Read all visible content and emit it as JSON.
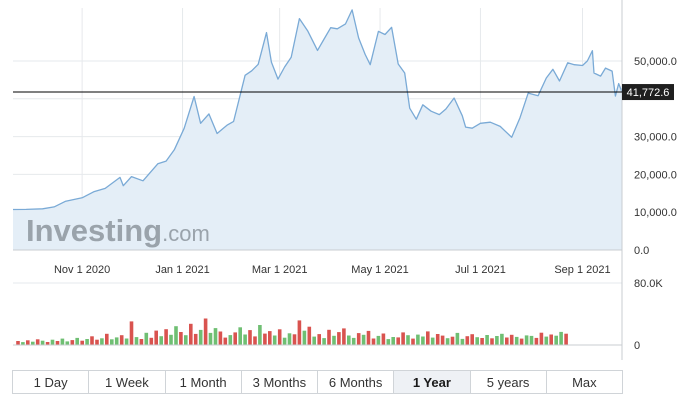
{
  "watermark": {
    "brand": "Investing",
    "suffix": ".com"
  },
  "range_buttons": [
    {
      "label": "1 Day",
      "active": false
    },
    {
      "label": "1 Week",
      "active": false
    },
    {
      "label": "1 Month",
      "active": false
    },
    {
      "label": "3 Months",
      "active": false
    },
    {
      "label": "6 Months",
      "active": false
    },
    {
      "label": "1 Year",
      "active": true
    },
    {
      "label": "5 years",
      "active": false
    },
    {
      "label": "Max",
      "active": false
    }
  ],
  "colors": {
    "line": "#7aaad6",
    "area": "#e4eef7",
    "current_line": "#000000",
    "current_label_bg": "#1f1f1f",
    "volume_up": "#6fbf73",
    "volume_down": "#d9534f",
    "grid": "#e6e9ec",
    "axis_text": "#333333",
    "watermark": "#9aa3ab"
  },
  "chart_data": [
    {
      "type": "area",
      "title": "",
      "xlabel": "",
      "ylabel": "",
      "current_value": 41772.6,
      "current_value_label": "41,772.6",
      "ylim": [
        0,
        64000
      ],
      "y_ticks": [
        0,
        10000,
        20000,
        30000,
        40000,
        50000
      ],
      "y_tick_labels": [
        "0.0",
        "10,000.0",
        "20,000.0",
        "30,000.0",
        "",
        "50,000.0"
      ],
      "x_ticks": [
        "2020-11-01",
        "2021-01-01",
        "2021-03-01",
        "2021-05-01",
        "2021-07-01",
        "2021-09-01"
      ],
      "x_tick_labels": [
        "Nov 1 2020",
        "Jan 1 2021",
        "Mar 1 2021",
        "May 1 2021",
        "Jul 1 2021",
        "Sep 1 2021"
      ],
      "xlim": [
        "2020-09-20",
        "2021-09-25"
      ],
      "grid": true,
      "series": [
        {
          "points": [
            [
              "2020-09-20",
              10700
            ],
            [
              "2020-09-28",
              10750
            ],
            [
              "2020-10-08",
              10900
            ],
            [
              "2020-10-15",
              11400
            ],
            [
              "2020-10-22",
              12900
            ],
            [
              "2020-11-01",
              13800
            ],
            [
              "2020-11-08",
              15400
            ],
            [
              "2020-11-15",
              16300
            ],
            [
              "2020-11-24",
              19200
            ],
            [
              "2020-11-26",
              17000
            ],
            [
              "2020-12-01",
              19400
            ],
            [
              "2020-12-08",
              18300
            ],
            [
              "2020-12-17",
              22800
            ],
            [
              "2020-12-22",
              23500
            ],
            [
              "2020-12-27",
              26500
            ],
            [
              "2021-01-02",
              32200
            ],
            [
              "2021-01-08",
              40600
            ],
            [
              "2021-01-12",
              33500
            ],
            [
              "2021-01-17",
              36000
            ],
            [
              "2021-01-22",
              30800
            ],
            [
              "2021-01-28",
              33000
            ],
            [
              "2021-02-01",
              34000
            ],
            [
              "2021-02-08",
              46200
            ],
            [
              "2021-02-12",
              47400
            ],
            [
              "2021-02-16",
              49100
            ],
            [
              "2021-02-21",
              57500
            ],
            [
              "2021-02-24",
              49700
            ],
            [
              "2021-02-28",
              45200
            ],
            [
              "2021-03-04",
              48400
            ],
            [
              "2021-03-08",
              51000
            ],
            [
              "2021-03-13",
              61200
            ],
            [
              "2021-03-18",
              58000
            ],
            [
              "2021-03-24",
              52800
            ],
            [
              "2021-03-28",
              55800
            ],
            [
              "2021-04-01",
              58800
            ],
            [
              "2021-04-05",
              58500
            ],
            [
              "2021-04-10",
              59800
            ],
            [
              "2021-04-14",
              63500
            ],
            [
              "2021-04-18",
              56100
            ],
            [
              "2021-04-22",
              51700
            ],
            [
              "2021-04-25",
              49000
            ],
            [
              "2021-04-30",
              57800
            ],
            [
              "2021-05-04",
              57000
            ],
            [
              "2021-05-08",
              58900
            ],
            [
              "2021-05-12",
              49200
            ],
            [
              "2021-05-16",
              46800
            ],
            [
              "2021-05-19",
              37500
            ],
            [
              "2021-05-23",
              34600
            ],
            [
              "2021-05-27",
              38400
            ],
            [
              "2021-06-01",
              36700
            ],
            [
              "2021-06-06",
              35800
            ],
            [
              "2021-06-10",
              37300
            ],
            [
              "2021-06-15",
              40200
            ],
            [
              "2021-06-20",
              35500
            ],
            [
              "2021-06-22",
              32500
            ],
            [
              "2021-06-26",
              32200
            ],
            [
              "2021-07-01",
              33500
            ],
            [
              "2021-07-07",
              33800
            ],
            [
              "2021-07-13",
              32700
            ],
            [
              "2021-07-20",
              29800
            ],
            [
              "2021-07-25",
              35000
            ],
            [
              "2021-07-30",
              41500
            ],
            [
              "2021-08-05",
              40800
            ],
            [
              "2021-08-10",
              45500
            ],
            [
              "2021-08-14",
              47800
            ],
            [
              "2021-08-18",
              44700
            ],
            [
              "2021-08-23",
              49500
            ],
            [
              "2021-08-27",
              49000
            ],
            [
              "2021-09-01",
              48800
            ],
            [
              "2021-09-04",
              50000
            ],
            [
              "2021-09-07",
              52700
            ],
            [
              "2021-09-08",
              46800
            ],
            [
              "2021-09-12",
              46000
            ],
            [
              "2021-09-15",
              48100
            ],
            [
              "2021-09-19",
              47300
            ],
            [
              "2021-09-21",
              40700
            ],
            [
              "2021-09-23",
              44000
            ],
            [
              "2021-09-25",
              41772.6
            ]
          ]
        }
      ]
    },
    {
      "type": "bar",
      "title": "",
      "ylabel": "",
      "ylim": [
        0,
        80000
      ],
      "y_tick_labels": [
        "0",
        "80.0K"
      ],
      "volume_start": "2020-09-23",
      "volume_days_per_bar": 3,
      "volume_shown": "estimated per-bar volume (shares), alternating direction",
      "volumes": [
        5200,
        3800,
        6100,
        4200,
        7400,
        5600,
        3900,
        6800,
        5100,
        8200,
        4700,
        6300,
        9100,
        5500,
        7800,
        11200,
        6900,
        8600,
        14500,
        7300,
        9800,
        12600,
        8400,
        30500,
        10200,
        7700,
        15800,
        9300,
        18600,
        11400,
        20400,
        13100,
        24200,
        16800,
        12700,
        27300,
        14300,
        19500,
        34200,
        15600,
        21800,
        17400,
        9600,
        12800,
        16300,
        22900,
        13500,
        19200,
        11100,
        25800,
        14700,
        17900,
        12200,
        20300,
        9400,
        15100,
        13800,
        31700,
        18400,
        23600,
        10800,
        14100,
        8900,
        19600,
        11900,
        16700,
        21400,
        12300,
        9100,
        15300,
        13100,
        18200,
        8400,
        11700,
        14900,
        7600,
        10300,
        9800,
        16200,
        12600,
        8200,
        13400,
        11000,
        17500,
        9500,
        14200,
        12100,
        8800,
        10700,
        15600,
        7900,
        11300,
        13900,
        10100,
        9000,
        12900,
        8600,
        11600,
        14400,
        9700,
        13200,
        10500,
        8300,
        12400,
        11800,
        9200,
        15900,
        10900,
        13600,
        12000,
        16900,
        14600
      ],
      "directions": [
        "d",
        "u",
        "d",
        "u",
        "d",
        "u",
        "d",
        "u",
        "d",
        "u",
        "u",
        "d",
        "u",
        "d",
        "u",
        "d",
        "d",
        "u",
        "d",
        "u",
        "u",
        "d",
        "u",
        "d",
        "u",
        "d",
        "u",
        "d",
        "d",
        "u",
        "d",
        "u",
        "u",
        "d",
        "u",
        "d",
        "d",
        "u",
        "d",
        "u",
        "u",
        "d",
        "d",
        "u",
        "d",
        "u",
        "u",
        "d",
        "d",
        "u",
        "d",
        "d",
        "u",
        "d",
        "u",
        "u",
        "d",
        "d",
        "u",
        "d",
        "u",
        "d",
        "u",
        "d",
        "u",
        "d",
        "d",
        "u",
        "u",
        "d",
        "u",
        "d",
        "d",
        "u",
        "d",
        "u",
        "u",
        "d",
        "d",
        "u",
        "d",
        "u",
        "u",
        "d",
        "u",
        "d",
        "d",
        "u",
        "d",
        "u",
        "u",
        "d",
        "d",
        "u",
        "d",
        "u",
        "d",
        "u",
        "u",
        "d",
        "d",
        "u",
        "d",
        "u",
        "u",
        "d",
        "d",
        "u",
        "d",
        "u",
        "u",
        "d"
      ]
    }
  ]
}
